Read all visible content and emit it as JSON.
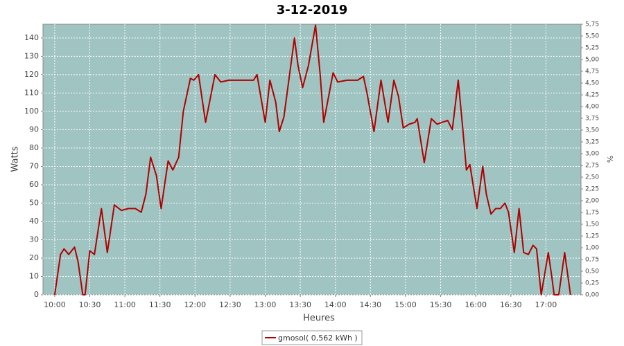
{
  "chart_data": {
    "type": "line",
    "title": "3-12-2019",
    "xlabel": "Heures",
    "ylabel": "Watts",
    "y2label": "%",
    "x": [
      "10:00",
      "10:05",
      "10:08",
      "10:12",
      "10:17",
      "10:20",
      "10:24",
      "10:26",
      "10:30",
      "10:34",
      "10:40",
      "10:45",
      "10:51",
      "10:57",
      "11:03",
      "11:09",
      "11:14",
      "11:18",
      "11:22",
      "11:27",
      "11:31",
      "11:37",
      "11:41",
      "11:46",
      "11:50",
      "11:56",
      "11:59",
      "12:03",
      "12:09",
      "12:17",
      "12:22",
      "12:29",
      "12:41",
      "12:50",
      "12:53",
      "13:00",
      "13:04",
      "13:09",
      "13:12",
      "13:16",
      "13:25",
      "13:28",
      "13:32",
      "13:37",
      "13:43",
      "13:47",
      "13:50",
      "13:58",
      "14:02",
      "14:10",
      "14:19",
      "14:24",
      "14:27",
      "14:33",
      "14:39",
      "14:45",
      "14:50",
      "14:54",
      "14:58",
      "15:03",
      "15:08",
      "15:10",
      "15:16",
      "15:22",
      "15:27",
      "15:31",
      "15:36",
      "15:40",
      "15:45",
      "15:49",
      "15:52",
      "15:55",
      "16:01",
      "16:06",
      "16:09",
      "16:13",
      "16:17",
      "16:21",
      "16:25",
      "16:28",
      "16:33",
      "16:37",
      "16:41",
      "16:45",
      "16:49",
      "16:52",
      "16:56",
      "17:02",
      "17:05",
      "17:07",
      "17:11",
      "17:16",
      "17:21"
    ],
    "series": [
      {
        "name": "gmosol( 0,562 kWh )",
        "color": "#b00000",
        "values": [
          0,
          22,
          25,
          22,
          26,
          18,
          0,
          0,
          24,
          22,
          47,
          23,
          49,
          46,
          47,
          47,
          45,
          55,
          75,
          65,
          47,
          73,
          68,
          75,
          100,
          118,
          117,
          120,
          94,
          120,
          116,
          117,
          117,
          117,
          120,
          94,
          117,
          105,
          89,
          97,
          140,
          125,
          113,
          125,
          147,
          120,
          94,
          121,
          116,
          117,
          117,
          119,
          110,
          89,
          117,
          94,
          117,
          108,
          91,
          93,
          94,
          96,
          72,
          96,
          93,
          94,
          95,
          90,
          117,
          90,
          68,
          71,
          47,
          70,
          55,
          44,
          47,
          47,
          50,
          45,
          23,
          47,
          23,
          22,
          27,
          25,
          0,
          23,
          10,
          0,
          0,
          23,
          0
        ]
      }
    ],
    "xlim": [
      "09:50",
      "17:30"
    ],
    "xticks": [
      "10:00",
      "10:30",
      "11:00",
      "11:30",
      "12:00",
      "12:30",
      "13:00",
      "13:30",
      "14:00",
      "14:30",
      "15:00",
      "15:30",
      "16:00",
      "16:30",
      "17:00"
    ],
    "ylim": [
      0,
      147.5
    ],
    "yticks": [
      0,
      10,
      20,
      30,
      40,
      50,
      60,
      70,
      80,
      90,
      100,
      110,
      120,
      130,
      140
    ],
    "y2lim": [
      0,
      5.75
    ],
    "y2ticks": [
      {
        "value": 0,
        "label": "0,00"
      },
      {
        "value": 0.25,
        "label": "0,25"
      },
      {
        "value": 0.5,
        "label": "0,50"
      },
      {
        "value": 0.75,
        "label": "0,75"
      },
      {
        "value": 1,
        "label": "1,00"
      },
      {
        "value": 1.25,
        "label": "1,25"
      },
      {
        "value": 1.5,
        "label": "1,50"
      },
      {
        "value": 1.75,
        "label": "1,75"
      },
      {
        "value": 2,
        "label": "2,00"
      },
      {
        "value": 2.25,
        "label": "2,25"
      },
      {
        "value": 2.5,
        "label": "2,50"
      },
      {
        "value": 2.75,
        "label": "2,75"
      },
      {
        "value": 3,
        "label": "3,00"
      },
      {
        "value": 3.25,
        "label": "3,25"
      },
      {
        "value": 3.5,
        "label": "3,50"
      },
      {
        "value": 3.75,
        "label": "3,75"
      },
      {
        "value": 4,
        "label": "4,00"
      },
      {
        "value": 4.25,
        "label": "4,25"
      },
      {
        "value": 4.5,
        "label": "4,50"
      },
      {
        "value": 4.75,
        "label": "4,75"
      },
      {
        "value": 5,
        "label": "5,00"
      },
      {
        "value": 5.25,
        "label": "5,25"
      },
      {
        "value": 5.5,
        "label": "5,50"
      },
      {
        "value": 5.75,
        "label": "5,75"
      }
    ],
    "grid": true,
    "background": "#a0c4c2",
    "legend": "bottom"
  }
}
